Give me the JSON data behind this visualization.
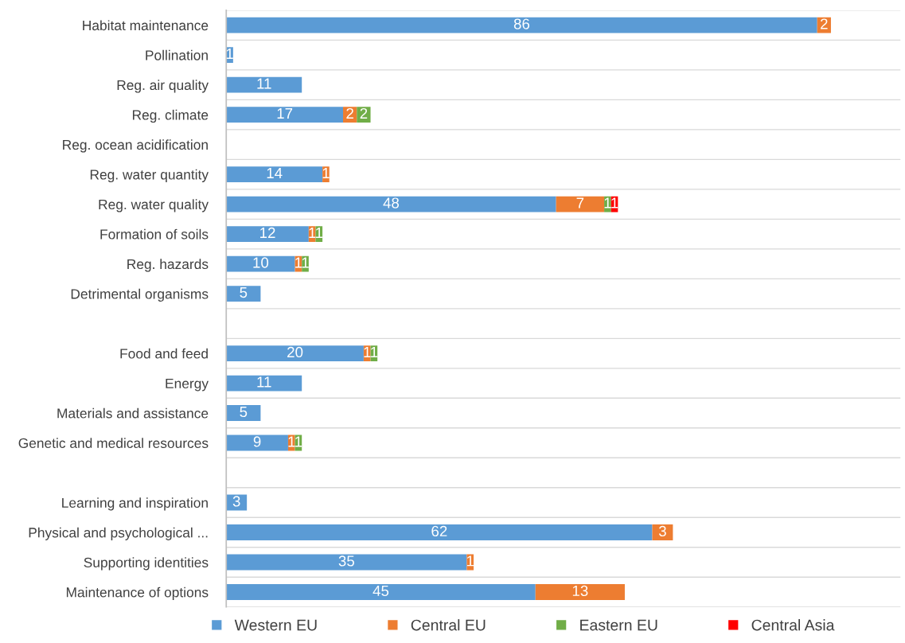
{
  "chart_data": {
    "type": "bar",
    "orientation": "horizontal",
    "stacked": true,
    "data_labels": true,
    "grid": "y",
    "legend": "bottom",
    "categories": [
      "Habitat maintenance",
      "Pollination",
      "Reg. air quality",
      "Reg. climate",
      "Reg. ocean acidification",
      "Reg. water quantity",
      "Reg. water quality",
      "Formation of soils",
      "Reg. hazards",
      "Detrimental organisms",
      null,
      "Food and feed",
      "Energy",
      "Materials and assistance",
      "Genetic and medical resources",
      null,
      "Learning and inspiration",
      "Physical and psychological ...",
      "Supporting identities",
      "Maintenance of options"
    ],
    "series": [
      {
        "name": "Western EU",
        "color": "#5b9bd5",
        "values": [
          86,
          1,
          11,
          17,
          null,
          14,
          48,
          12,
          10,
          5,
          null,
          20,
          11,
          5,
          9,
          null,
          3,
          62,
          35,
          45
        ]
      },
      {
        "name": "Central EU",
        "color": "#ed7d31",
        "values": [
          2,
          null,
          null,
          2,
          null,
          1,
          7,
          1,
          1,
          null,
          null,
          1,
          null,
          null,
          1,
          null,
          null,
          3,
          1,
          13
        ]
      },
      {
        "name": "Eastern EU",
        "color": "#70ad47",
        "values": [
          null,
          null,
          null,
          2,
          null,
          null,
          1,
          1,
          1,
          null,
          null,
          1,
          null,
          null,
          1,
          null,
          null,
          null,
          null,
          null
        ]
      },
      {
        "name": "Central Asia",
        "color": "#ff0000",
        "values": [
          null,
          null,
          null,
          null,
          null,
          null,
          1,
          null,
          null,
          null,
          null,
          null,
          null,
          null,
          null,
          null,
          null,
          null,
          null,
          null
        ]
      }
    ]
  }
}
